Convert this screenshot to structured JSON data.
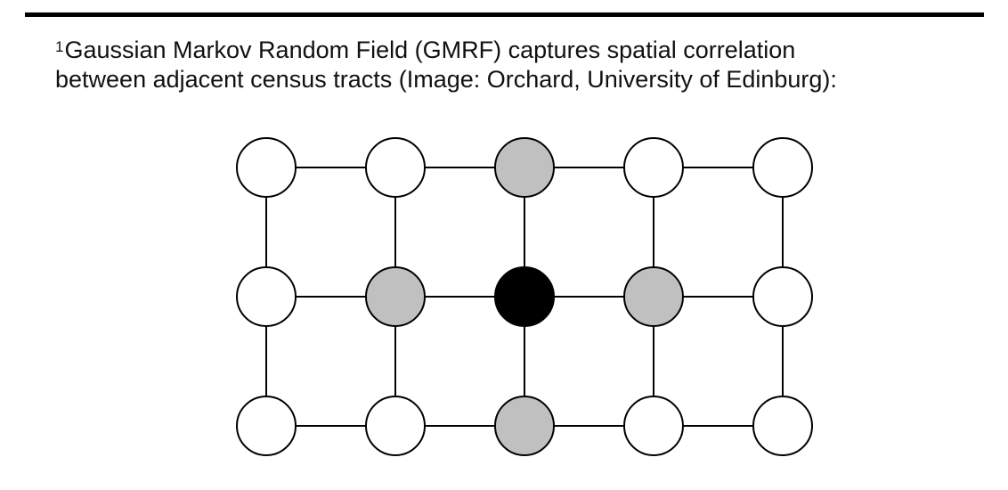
{
  "footnote": {
    "marker": "1",
    "line1": "Gaussian Markov Random Field (GMRF) captures spatial correlation",
    "line2": "between adjacent census tracts (Image: Orchard, University of Edinburg):"
  },
  "diagram": {
    "rows": 3,
    "cols": 5,
    "colors": {
      "empty": "#ffffff",
      "neighbor": "#c0c0c0",
      "center": "#000000"
    },
    "nodes": [
      [
        "empty",
        "empty",
        "neighbor",
        "empty",
        "empty"
      ],
      [
        "empty",
        "neighbor",
        "center",
        "neighbor",
        "empty"
      ],
      [
        "empty",
        "empty",
        "neighbor",
        "empty",
        "empty"
      ]
    ]
  }
}
